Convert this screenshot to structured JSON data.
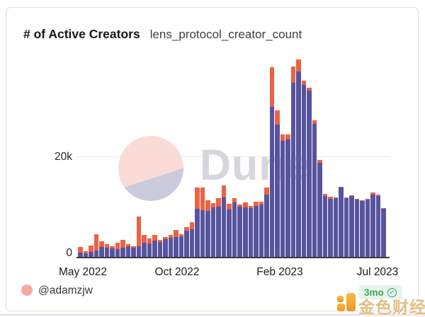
{
  "card": {
    "title": "# of Active Creators",
    "query_name": "lens_protocol_creator_count"
  },
  "watermark": {
    "brand": "Dune"
  },
  "footer": {
    "author_handle": "@adamzjw",
    "age_badge": "3mo"
  },
  "overlay": {
    "site_watermark": "金色财经"
  },
  "colors": {
    "bar_purple": "#57549f",
    "bar_orange": "#ec6244",
    "gridline": "#ececec",
    "axis_line": "#3c3c3c",
    "badge_green": "#3aa55c",
    "badge_bg": "#e6f5eb",
    "avatar_pink": "#f3aba4",
    "dune_gray": "#d6d6db",
    "circle_pink": "#fadbd5",
    "circle_lavender": "#c9cadc",
    "jinse_gold": "#d9ad63",
    "jinse_orange": "#f59d1e"
  },
  "chart_data": {
    "type": "bar",
    "stacked": true,
    "title": "# of Active Creators",
    "subtitle": "lens_protocol_creator_count",
    "x": {
      "tick_labels": [
        "May 2022",
        "Oct 2022",
        "Feb 2023",
        "Jul 2023"
      ],
      "note": "weekly bars, May 2022 through Jul 2023"
    },
    "y": {
      "tick_labels": [
        "0",
        "20k"
      ],
      "ylim_k": [
        0,
        40
      ],
      "gridlines_k": [
        20
      ]
    },
    "legend": null,
    "unit": "thousand active creators",
    "categories_week_index": "58 consecutive weekly bars",
    "series": [
      {
        "name": "purple-segment",
        "color": "#57549f",
        "values_k": [
          1.0,
          0.8,
          1.1,
          1.4,
          2.1,
          2.0,
          1.8,
          1.7,
          2.0,
          2.2,
          2.0,
          2.3,
          2.9,
          2.8,
          3.4,
          3.1,
          3.6,
          4.0,
          4.1,
          4.2,
          5.3,
          5.6,
          9.7,
          9.5,
          9.3,
          10.0,
          10.2,
          12.0,
          9.6,
          11.0,
          10.1,
          10.0,
          9.8,
          10.3,
          10.6,
          12.5,
          30.0,
          26.5,
          23.3,
          23.5,
          34.8,
          37.0,
          34.4,
          33.2,
          26.6,
          18.9,
          12.3,
          11.7,
          11.9,
          14.0,
          11.9,
          12.3,
          11.6,
          11.3,
          11.6,
          12.5,
          12.2,
          9.7
        ]
      },
      {
        "name": "orange-segment",
        "color": "#ec6244",
        "values_k": [
          1.1,
          0.5,
          1.3,
          3.3,
          1.1,
          0.7,
          0.5,
          1.2,
          1.5,
          0.5,
          0.3,
          5.9,
          1.6,
          1.0,
          1.1,
          0.4,
          0.5,
          0.5,
          1.4,
          0.5,
          0.8,
          1.4,
          4.2,
          4.4,
          2.1,
          0.9,
          1.6,
          2.4,
          1.1,
          0.9,
          0.5,
          1.0,
          0.5,
          0.8,
          0.5,
          1.4,
          7.9,
          2.8,
          1.2,
          1.0,
          3.2,
          2.4,
          0.8,
          0.6,
          0.7,
          0.5,
          0.4,
          0.4,
          0.1,
          0.1,
          0.1,
          0.1,
          0.1,
          0.1,
          0.1,
          0.4,
          0.4,
          0.1
        ]
      }
    ]
  }
}
